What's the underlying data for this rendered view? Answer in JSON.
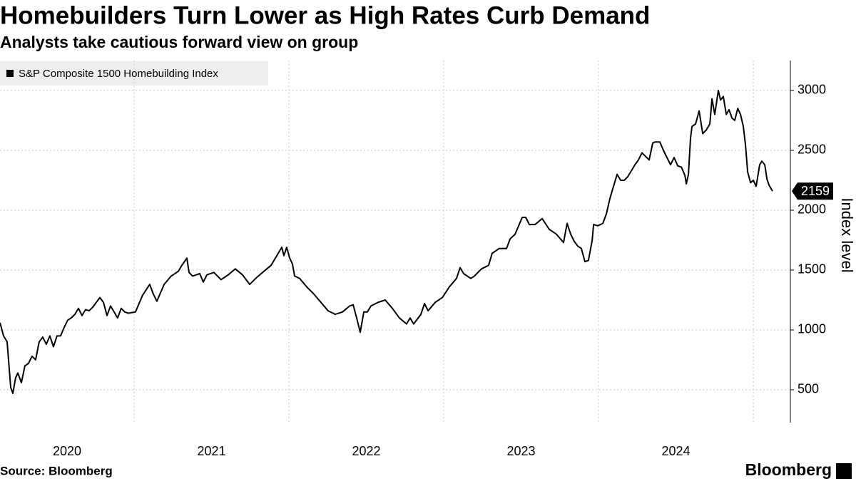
{
  "chart_data": {
    "type": "line",
    "title": "Homebuilders Turn Lower as High Rates Curb Demand",
    "subtitle": "Analysts take cautious forward view on group",
    "y_label": "Index level",
    "source": "Source: Bloomberg",
    "brand": "Bloomberg",
    "x": [
      2020.134,
      2020.157,
      2020.18,
      2020.203,
      2020.217,
      2020.235,
      2020.249,
      2020.272,
      2020.295,
      2020.318,
      2020.341,
      2020.364,
      2020.387,
      2020.41,
      2020.433,
      2020.456,
      2020.479,
      2020.502,
      2020.525,
      2020.548,
      2020.571,
      2020.594,
      2020.618,
      2020.641,
      2020.664,
      2020.687,
      2020.71,
      2020.733,
      2020.756,
      2020.779,
      2020.802,
      2020.825,
      2020.848,
      2020.871,
      2020.894,
      2020.917,
      2020.94,
      2020.963,
      2021.009,
      2021.032,
      2021.055,
      2021.101,
      2021.124,
      2021.147,
      2021.194,
      2021.24,
      2021.286,
      2021.309,
      2021.341,
      2021.355,
      2021.378,
      2021.424,
      2021.447,
      2021.47,
      2021.516,
      2021.562,
      2021.608,
      2021.654,
      2021.7,
      2021.747,
      2021.793,
      2021.839,
      2021.885,
      2021.931,
      2021.954,
      2021.968,
      2021.986,
      2022.005,
      2022.023,
      2022.037,
      2022.069,
      2022.115,
      2022.161,
      2022.207,
      2022.253,
      2022.3,
      2022.346,
      2022.392,
      2022.415,
      2022.438,
      2022.461,
      2022.484,
      2022.507,
      2022.53,
      2022.576,
      2022.622,
      2022.668,
      2022.714,
      2022.76,
      2022.783,
      2022.806,
      2022.853,
      2022.876,
      2022.899,
      2022.945,
      2022.991,
      2023.037,
      2023.083,
      2023.106,
      2023.129,
      2023.175,
      2023.198,
      2023.244,
      2023.29,
      2023.313,
      2023.359,
      2023.406,
      2023.429,
      2023.461,
      2023.484,
      2023.507,
      2023.53,
      2023.553,
      2023.59,
      2023.636,
      2023.682,
      2023.728,
      2023.774,
      2023.797,
      2023.82,
      2023.843,
      2023.866,
      2023.889,
      2023.912,
      2023.935,
      2023.959,
      2023.968,
      2023.995,
      2024.028,
      2024.051,
      2024.074,
      2024.097,
      2024.12,
      2024.143,
      2024.166,
      2024.189,
      2024.212,
      2024.235,
      2024.258,
      2024.281,
      2024.304,
      2024.327,
      2024.35,
      2024.364,
      2024.396,
      2024.419,
      2024.442,
      2024.465,
      2024.488,
      2024.512,
      2024.535,
      2024.558,
      2024.567,
      2024.581,
      2024.594,
      2024.604,
      2024.627,
      2024.65,
      2024.673,
      2024.696,
      2024.719,
      2024.733,
      2024.751,
      2024.774,
      2024.788,
      2024.806,
      2024.825,
      2024.843,
      2024.862,
      2024.88,
      2024.899,
      2024.917,
      2024.935,
      2024.949,
      2024.963,
      2024.982,
      2025.0,
      2025.018,
      2025.041,
      2025.055,
      2025.074,
      2025.088,
      2025.101,
      2025.124
    ],
    "series": [
      {
        "name": "S&P Composite 1500 Homebuilding Index",
        "color": "#000000",
        "values": [
          1060,
          950,
          900,
          520,
          470,
          600,
          640,
          560,
          700,
          720,
          780,
          750,
          900,
          940,
          880,
          950,
          860,
          950,
          950,
          1020,
          1080,
          1100,
          1130,
          1180,
          1120,
          1170,
          1160,
          1190,
          1230,
          1270,
          1230,
          1120,
          1200,
          1150,
          1100,
          1180,
          1150,
          1140,
          1150,
          1220,
          1290,
          1380,
          1300,
          1240,
          1380,
          1450,
          1490,
          1540,
          1600,
          1480,
          1450,
          1470,
          1400,
          1460,
          1480,
          1420,
          1460,
          1510,
          1460,
          1380,
          1440,
          1490,
          1540,
          1640,
          1690,
          1620,
          1690,
          1600,
          1550,
          1450,
          1430,
          1360,
          1300,
          1230,
          1160,
          1130,
          1150,
          1200,
          1210,
          1100,
          980,
          1150,
          1150,
          1200,
          1230,
          1250,
          1180,
          1100,
          1050,
          1100,
          1050,
          1130,
          1220,
          1160,
          1230,
          1270,
          1360,
          1430,
          1520,
          1470,
          1430,
          1450,
          1510,
          1540,
          1640,
          1680,
          1680,
          1760,
          1800,
          1870,
          1940,
          1940,
          1880,
          1880,
          1930,
          1840,
          1800,
          1730,
          1890,
          1800,
          1740,
          1700,
          1680,
          1570,
          1580,
          1750,
          1880,
          1870,
          1890,
          1970,
          2100,
          2200,
          2300,
          2250,
          2250,
          2280,
          2330,
          2380,
          2420,
          2480,
          2450,
          2420,
          2560,
          2570,
          2570,
          2500,
          2440,
          2380,
          2440,
          2370,
          2360,
          2290,
          2220,
          2300,
          2600,
          2700,
          2720,
          2830,
          2640,
          2670,
          2720,
          2930,
          2800,
          3000,
          2920,
          2950,
          2800,
          2840,
          2770,
          2750,
          2850,
          2800,
          2700,
          2550,
          2320,
          2230,
          2250,
          2200,
          2380,
          2410,
          2380,
          2260,
          2210,
          2159
        ]
      }
    ],
    "xlim": [
      2020.134,
      2025.23
    ],
    "xticks": [
      2020,
      2021,
      2022,
      2023,
      2024
    ],
    "xgrid": [
      2021,
      2022,
      2023,
      2024,
      2025
    ],
    "ylim": [
      226,
      3250
    ],
    "yticks": [
      500,
      1000,
      1500,
      2000,
      2500,
      3000
    ],
    "grid": true
  }
}
